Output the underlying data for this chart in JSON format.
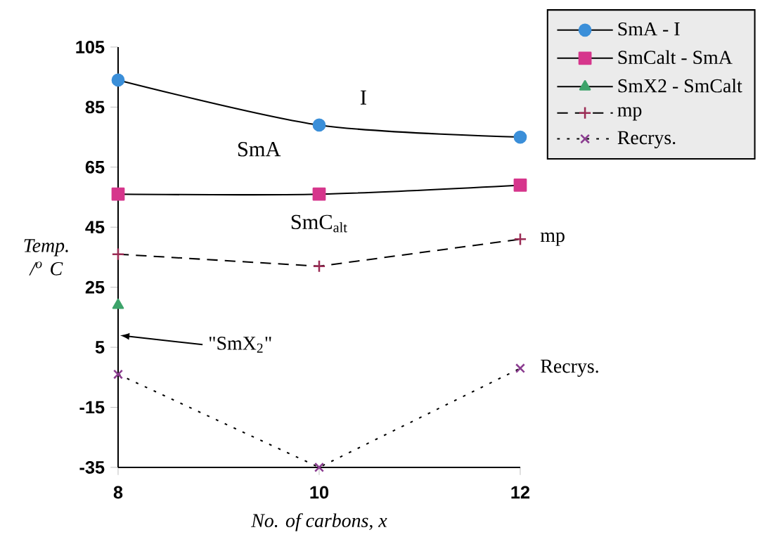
{
  "chart_data": {
    "type": "line",
    "xlabel": "No. of carbons, x",
    "ylabel": "Temp. /$^{o}$ C",
    "x": [
      8,
      10,
      12
    ],
    "series": [
      {
        "name": "SmA - I",
        "color": "#3b8fd9",
        "marker": "circle",
        "line_style": "solid",
        "values": [
          94,
          79,
          75
        ]
      },
      {
        "name": "SmCalt - SmA",
        "color": "#d6368c",
        "marker": "square",
        "line_style": "solid",
        "values": [
          56,
          56,
          59
        ]
      },
      {
        "name": "SmX2 - SmCalt",
        "color": "#3da36a",
        "marker": "triangle",
        "line_style": "solid",
        "values": [
          19,
          null,
          null
        ]
      },
      {
        "name": "mp",
        "color": "#9b2c55",
        "marker": "plus",
        "line_style": "dashed",
        "values": [
          36,
          32,
          41
        ]
      },
      {
        "name": "Recrys.",
        "color": "#8b3d90",
        "marker": "cross",
        "line_style": "dotted",
        "values": [
          -4,
          -35,
          -2
        ]
      }
    ],
    "xlim": [
      8,
      12
    ],
    "xticks": [
      8,
      10,
      12
    ],
    "ylim": [
      -35,
      105
    ],
    "yticks": [
      -35,
      -15,
      5,
      25,
      45,
      65,
      85,
      105
    ],
    "annotations": [
      "I",
      "SmA",
      "SmC$_{alt}$",
      {
        "text": "mp",
        "x": 12,
        "y": 41
      },
      {
        "text": "Recrys.",
        "x": 12,
        "y": -2
      },
      "\"SmX$_{2}$\""
    ],
    "grid": false,
    "legend": "top right"
  }
}
